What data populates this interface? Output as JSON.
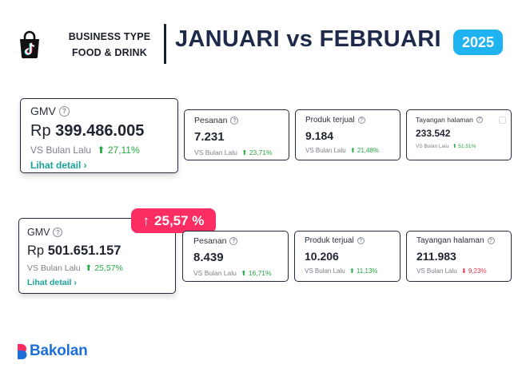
{
  "header": {
    "logo_icon": "tiktok-shop-bag-icon",
    "business_line1": "BUSINESS TYPE",
    "business_line2": "FOOD & DRINK",
    "title": "JANUARI vs FEBRUARI",
    "year": "2025",
    "year_color": "#1fb3f2"
  },
  "januari": {
    "gmv": {
      "label": "GMV",
      "currency": "Rp",
      "value": "399.486.005",
      "vs_label": "VS Bulan Lalu",
      "change": "27,11%",
      "direction": "up",
      "link": "Lihat detail ›"
    },
    "pesanan": {
      "label": "Pesanan",
      "value": "7.231",
      "vs_label": "VS Bulan Lalu",
      "change": "23,71%",
      "direction": "up"
    },
    "produk": {
      "label": "Produk terjual",
      "value": "9.184",
      "vs_label": "VS Bulan Lalu",
      "change": "21,48%",
      "direction": "up"
    },
    "tayangan": {
      "label": "Tayangan halaman",
      "value": "233.542",
      "vs_label": "VS Bulan Lalu",
      "change": "51,51%",
      "direction": "up"
    }
  },
  "februari": {
    "badge": {
      "arrow": "↑",
      "text": "25,57 %",
      "color": "#fb2d63"
    },
    "gmv": {
      "label": "GMV",
      "currency": "Rp",
      "value": "501.651.157",
      "vs_label": "VS Bulan Lalu",
      "change": "25,57%",
      "direction": "up",
      "link": "Lihat detail ›"
    },
    "pesanan": {
      "label": "Pesanan",
      "value": "8.439",
      "vs_label": "VS Bulan Lalu",
      "change": "16,71%",
      "direction": "up"
    },
    "produk": {
      "label": "Produk terjual",
      "value": "10.206",
      "vs_label": "VS Bulan Lalu",
      "change": "11,13%",
      "direction": "up"
    },
    "tayangan": {
      "label": "Tayangan halaman",
      "value": "211.983",
      "vs_label": "VS Bulan Lalu",
      "change": "9,23%",
      "direction": "down"
    }
  },
  "icons": {
    "info": "info-question-icon",
    "up": "arrow-up-icon",
    "down": "arrow-down-icon"
  },
  "colors": {
    "up": "#27a844",
    "down": "#e5354f",
    "link": "#1aa29a",
    "brand": "#1e6fd9"
  },
  "footer": {
    "brand": "Bakolan"
  }
}
